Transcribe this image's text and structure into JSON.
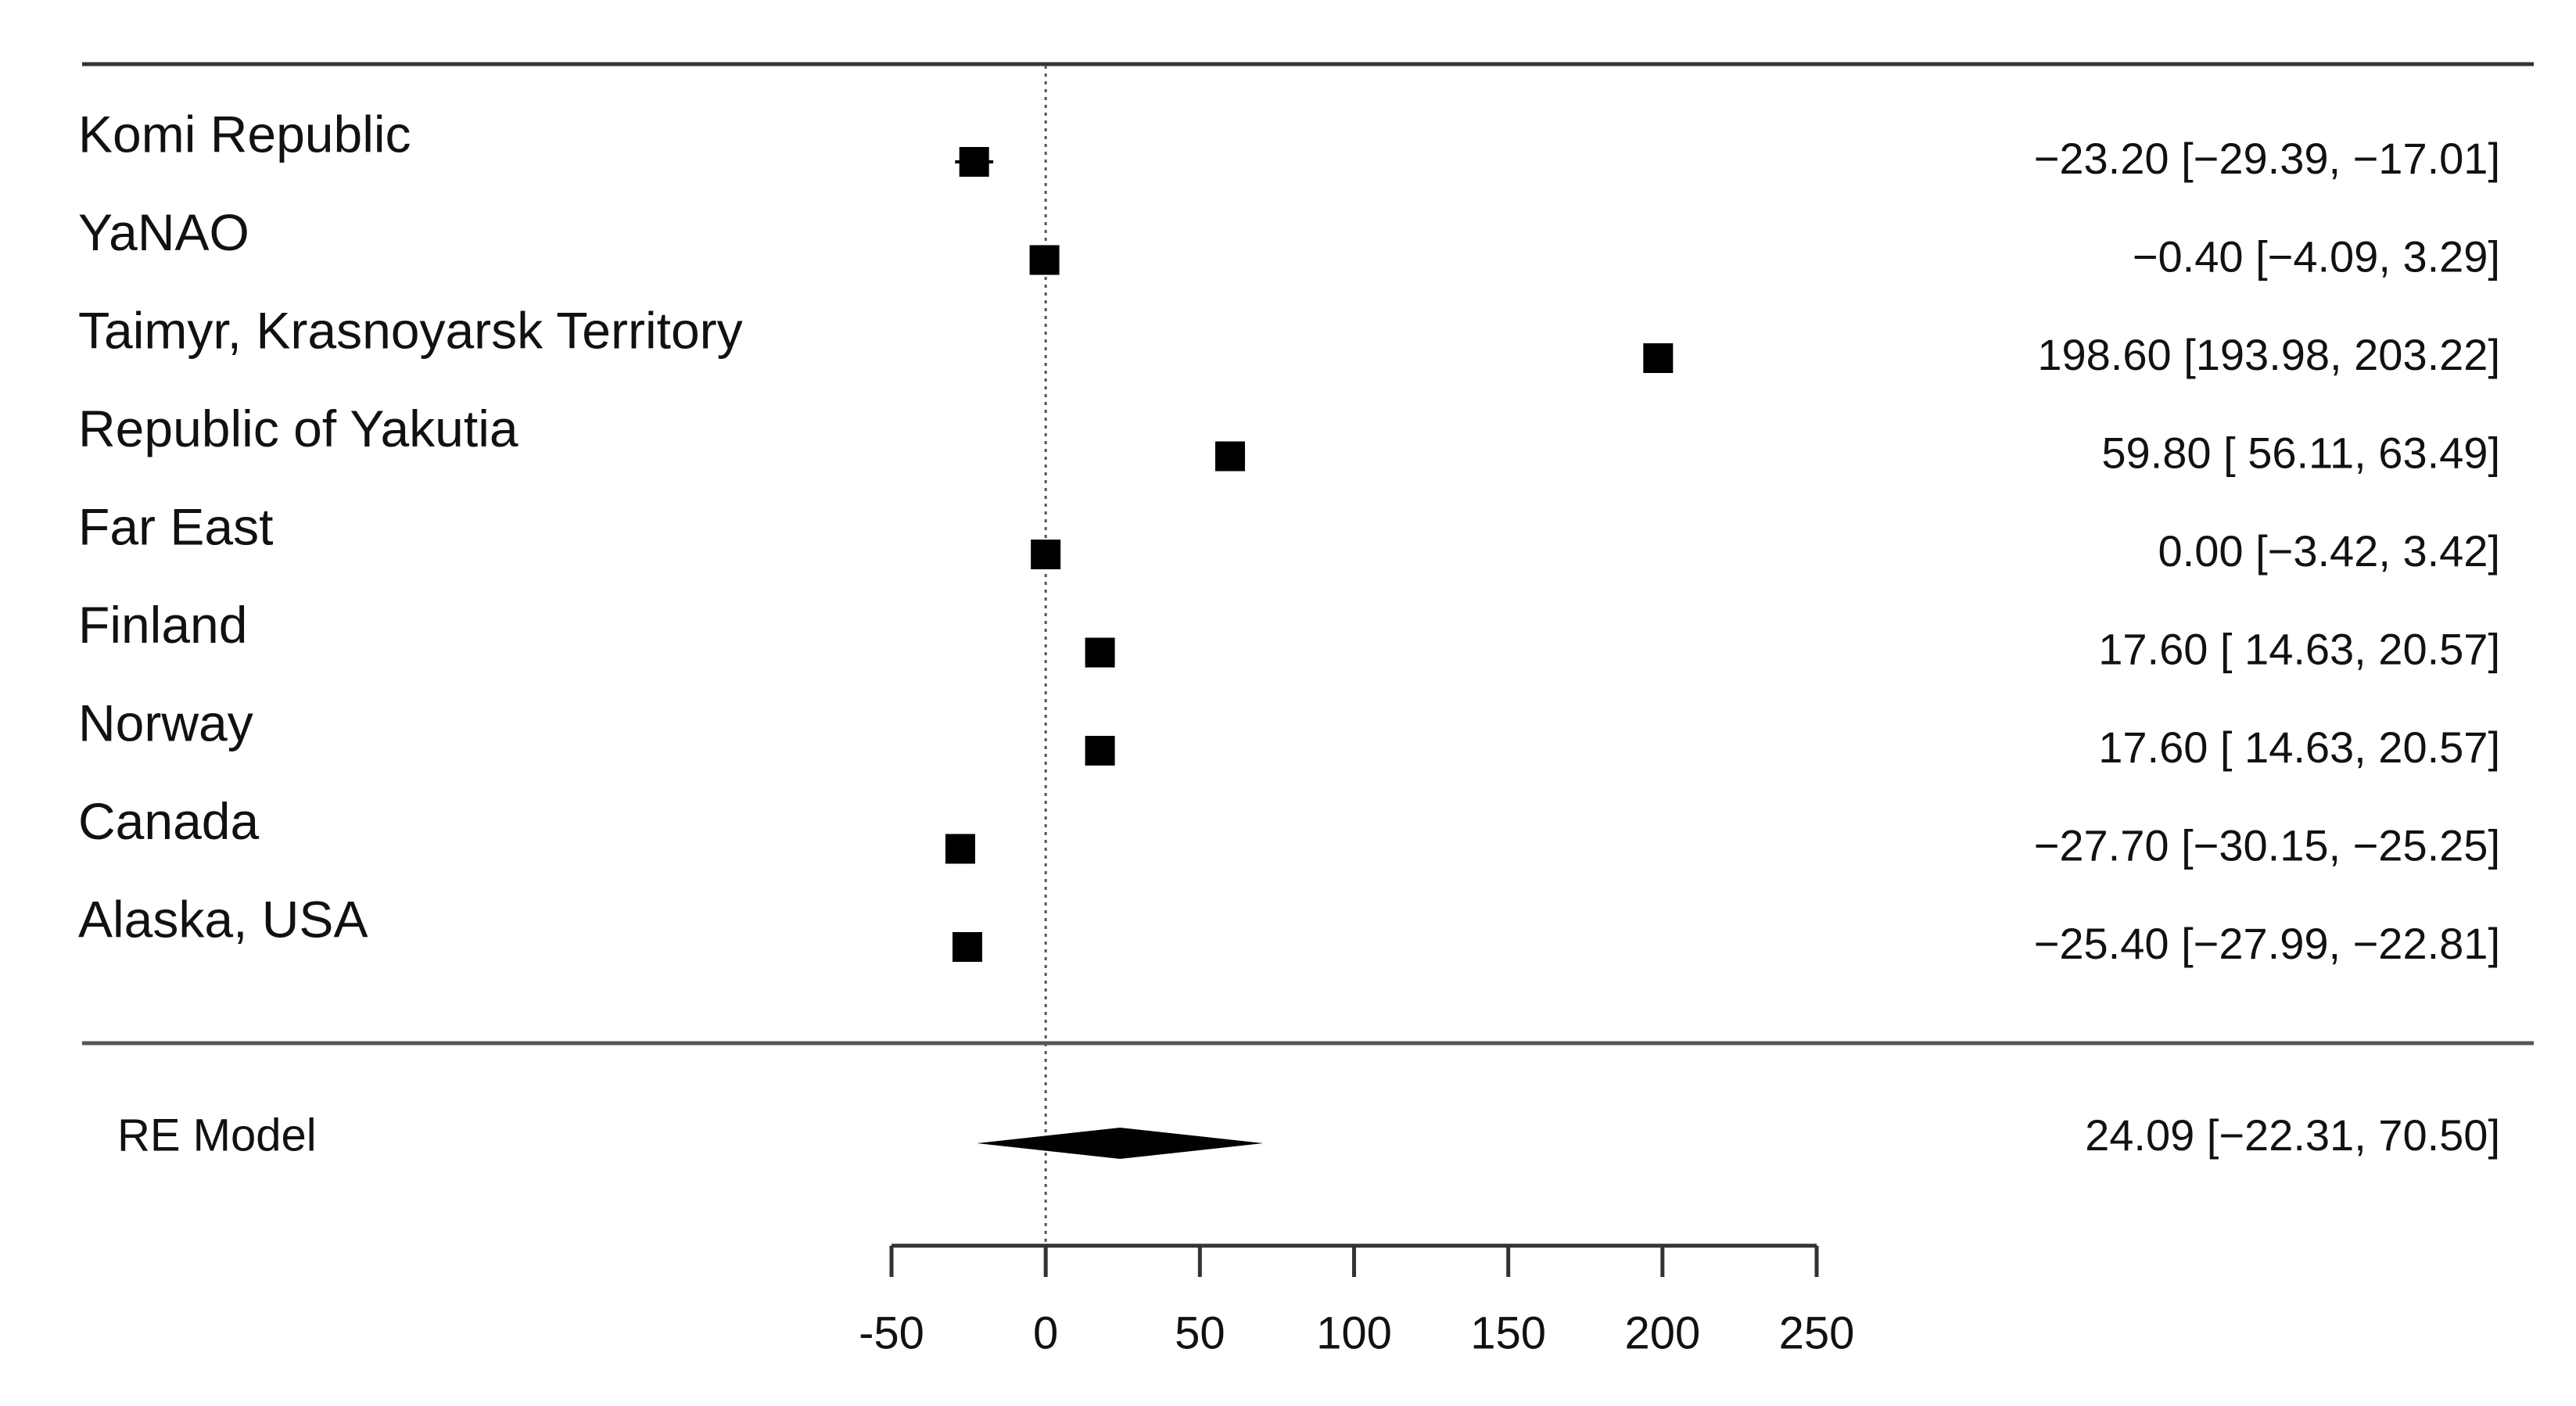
{
  "chart_data": {
    "type": "forest",
    "categories": [
      "Komi Republic",
      "YaNAO",
      "Taimyr, Krasnoyarsk Territory",
      "Republic of Yakutia",
      "Far East",
      "Finland",
      "Norway",
      "Canada",
      "Alaska, USA"
    ],
    "values": [
      -23.2,
      -0.4,
      198.6,
      59.8,
      0.0,
      17.6,
      17.6,
      -27.7,
      -25.4
    ],
    "lower": [
      -29.39,
      -4.09,
      193.98,
      56.11,
      -3.42,
      14.63,
      14.63,
      -30.15,
      -27.99
    ],
    "upper": [
      -17.01,
      3.29,
      203.22,
      63.49,
      3.42,
      20.57,
      20.57,
      -25.25,
      -22.81
    ],
    "value_labels": [
      "−23.20 [−29.39, −17.01]",
      "−0.40 [−4.09,  3.29]",
      "198.60 [193.98, 203.22]",
      "59.80 [ 56.11,  63.49]",
      "0.00 [−3.42,  3.42]",
      "17.60 [ 14.63,  20.57]",
      "17.60 [ 14.63,  20.57]",
      "−27.70 [−30.15, −25.25]",
      "−25.40 [−27.99, −22.81]"
    ],
    "summary": {
      "label": "RE Model",
      "value": 24.09,
      "lower": -22.31,
      "upper": 70.5,
      "value_label": "24.09 [−22.31,  70.50]"
    },
    "color": "#000000",
    "refline": 0,
    "xlim": [
      -50,
      250
    ],
    "xticks": [
      -50,
      0,
      50,
      100,
      150,
      200,
      250
    ]
  }
}
